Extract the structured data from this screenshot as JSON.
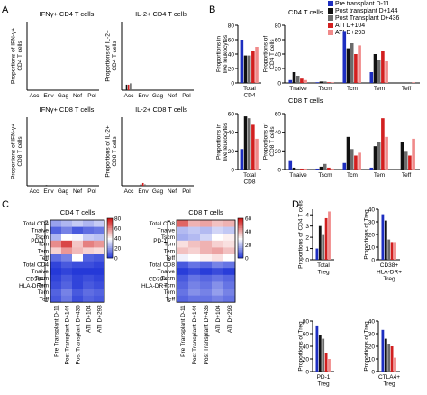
{
  "colors": {
    "pre": "#1d2ec0",
    "post144": "#111111",
    "post436": "#6b6b6b",
    "ati104": "#d21f1f",
    "ati293": "#f08a8a",
    "hm_low": "#1a2fd6",
    "hm_mid": "#ffffff",
    "hm_high": "#d01818"
  },
  "panel_labels": [
    "A",
    "B",
    "C",
    "D"
  ],
  "legend_b": [
    {
      "label": "Pre transplant D-11",
      "color": "#1d2ec0"
    },
    {
      "label": "Post transplant D+144",
      "color": "#111111"
    },
    {
      "label": "Post Transplant D+436",
      "color": "#6b6b6b"
    },
    {
      "label": "ATI D+104",
      "color": "#d21f1f"
    },
    {
      "label": "ATI D+293",
      "color": "#f08a8a"
    }
  ],
  "chart_data": [
    {
      "id": "A1",
      "type": "bar",
      "title": "IFNγ+ CD4 T cells",
      "ylabel": "Proportions of IFN-γ+ CD4 T cells",
      "categories": [
        "Acc",
        "Env",
        "Gag",
        "Nef",
        "Pol"
      ],
      "ylim": [
        0,
        1
      ],
      "series": [
        {
          "values": [
            0,
            0,
            0,
            0,
            0
          ]
        },
        {
          "values": [
            0,
            0,
            0,
            0,
            0
          ]
        },
        {
          "values": [
            0,
            0,
            0,
            0,
            0
          ]
        }
      ]
    },
    {
      "id": "A2",
      "type": "bar",
      "title": "IL-2+ CD4 T cells",
      "ylabel": "Proportions of IL-2+ CD4 T cells",
      "categories": [
        "Acc",
        "Env",
        "Gag",
        "Nef",
        "Pol"
      ],
      "ylim": [
        0,
        1
      ],
      "series": [
        {
          "values": [
            0.08,
            0,
            0,
            0,
            0
          ]
        },
        {
          "values": [
            0.08,
            0,
            0,
            0,
            0
          ]
        },
        {
          "values": [
            0.1,
            0,
            0,
            0,
            0
          ]
        }
      ]
    },
    {
      "id": "A3",
      "type": "bar",
      "title": "IFNγ+ CD8 T cells",
      "ylabel": "Proportions of IFN-γ+ CD8 T cells",
      "categories": [
        "Acc",
        "Env",
        "Gag",
        "Nef",
        "Pol"
      ],
      "ylim": [
        0,
        1
      ],
      "series": [
        {
          "values": [
            0,
            0.01,
            0,
            0,
            0
          ]
        },
        {
          "values": [
            0,
            0,
            0,
            0,
            0
          ]
        },
        {
          "values": [
            0,
            0,
            0,
            0,
            0
          ]
        }
      ]
    },
    {
      "id": "A4",
      "type": "bar",
      "title": "IL-2+ CD8 T cells",
      "ylabel": "Proportions of IL-2+ CD8 T cells",
      "categories": [
        "Acc",
        "Env",
        "Gag",
        "Nef",
        "Pol"
      ],
      "ylim": [
        0,
        1
      ],
      "series": [
        {
          "values": [
            0,
            0.02,
            0,
            0,
            0
          ]
        },
        {
          "values": [
            0,
            0.04,
            0,
            0,
            0
          ]
        },
        {
          "values": [
            0,
            0.02,
            0,
            0,
            0
          ]
        }
      ]
    },
    {
      "id": "B1",
      "type": "bar",
      "ylabel": "Proportions in live leukocytes",
      "categories": [
        "Total CD4"
      ],
      "yticks": [
        0,
        20,
        40,
        60,
        80
      ],
      "ylim": [
        0,
        80
      ],
      "series": [
        {
          "values": [
            60
          ]
        },
        {
          "values": [
            38
          ]
        },
        {
          "values": [
            38
          ]
        },
        {
          "values": [
            45
          ]
        },
        {
          "values": [
            50
          ]
        }
      ]
    },
    {
      "id": "B2",
      "type": "bar",
      "title": "CD4 T cells",
      "ylabel": "Proportions of CD4 T cells",
      "categories": [
        "Tnaive",
        "Tscm",
        "Tcm",
        "Tem",
        "Teff"
      ],
      "yticks": [
        0,
        20,
        40,
        60,
        80
      ],
      "ylim": [
        0,
        80
      ],
      "series": [
        {
          "values": [
            4,
            1,
            72,
            15,
            0
          ]
        },
        {
          "values": [
            15,
            2,
            48,
            40,
            0
          ]
        },
        {
          "values": [
            10,
            2,
            55,
            32,
            0
          ]
        },
        {
          "values": [
            6,
            1,
            40,
            44,
            0
          ]
        },
        {
          "values": [
            4,
            1,
            52,
            30,
            1
          ]
        }
      ]
    },
    {
      "id": "B3",
      "type": "bar",
      "ylabel": "Proportions in live leukocytes",
      "categories": [
        "Total CD8"
      ],
      "yticks": [
        0,
        20,
        40,
        60
      ],
      "ylim": [
        0,
        60
      ],
      "series": [
        {
          "values": [
            22
          ]
        },
        {
          "values": [
            57
          ]
        },
        {
          "values": [
            55
          ]
        },
        {
          "values": [
            48
          ]
        },
        {
          "values": [
            33
          ]
        }
      ]
    },
    {
      "id": "B4",
      "type": "bar",
      "title": "CD8 T cells",
      "ylabel": "Proportions of CD8 T cells",
      "categories": [
        "Tnaive",
        "Tscm",
        "Tcm",
        "Tem",
        "Teff"
      ],
      "yticks": [
        0,
        20,
        40,
        60
      ],
      "ylim": [
        0,
        60
      ],
      "series": [
        {
          "values": [
            10,
            1,
            7,
            2,
            0
          ]
        },
        {
          "values": [
            2,
            3,
            35,
            25,
            30
          ]
        },
        {
          "values": [
            1,
            6,
            22,
            30,
            20
          ]
        },
        {
          "values": [
            1,
            2,
            15,
            55,
            15
          ]
        },
        {
          "values": [
            1,
            1,
            18,
            35,
            33
          ]
        }
      ]
    },
    {
      "id": "C1",
      "type": "heatmap",
      "title": "CD4 T cells",
      "rows": [
        "Total CD4",
        "Tnaive",
        "Tscm",
        "Tcm",
        "Tem",
        "Teff",
        "Total CD4",
        "Tnaive",
        "Tscm",
        "Tcm",
        "Tem",
        "Teff"
      ],
      "row_groups": [
        {
          "label": "PD-1",
          "rows": 6
        },
        {
          "label": "CD38+ HLA-DR+",
          "rows": 6
        }
      ],
      "columns": [
        "Pre Transplant D-11",
        "Post Transplant D+144",
        "Post Transplant D+436",
        "ATI D+104",
        "ATI D+293"
      ],
      "colorbar": {
        "min": 0,
        "max": 80,
        "ticks": [
          0,
          20,
          40,
          60,
          80
        ]
      },
      "values": [
        [
          22,
          26,
          30,
          26,
          30
        ],
        [
          10,
          16,
          8,
          12,
          14
        ],
        [
          26,
          40,
          38,
          30,
          28
        ],
        [
          60,
          72,
          50,
          62,
          58
        ],
        [
          48,
          58,
          52,
          48,
          46
        ],
        [
          12,
          16,
          40,
          10,
          8
        ],
        [
          4,
          8,
          6,
          6,
          4
        ],
        [
          2,
          4,
          2,
          2,
          2
        ],
        [
          4,
          8,
          4,
          6,
          4
        ],
        [
          6,
          10,
          4,
          8,
          6
        ],
        [
          10,
          16,
          8,
          12,
          10
        ],
        [
          8,
          14,
          6,
          10,
          8
        ]
      ]
    },
    {
      "id": "C2",
      "type": "heatmap",
      "title": "CD8 T cells",
      "rows": [
        "Total CD8",
        "Tnaive",
        "Tscm",
        "Tcm",
        "Tem",
        "Teff",
        "Total CD8",
        "Tnaive",
        "Tscm",
        "Tcm",
        "Tem",
        "Teff"
      ],
      "row_groups": [
        {
          "label": "PD-1",
          "rows": 6
        },
        {
          "label": "CD38+ HLA-DR+",
          "rows": 6
        }
      ],
      "columns": [
        "Pre Transplant D-11",
        "Post Transplant D+144",
        "Post Transplant D+436",
        "ATI D+104",
        "ATI D+293"
      ],
      "colorbar": {
        "min": 0,
        "max": 60,
        "ticks": [
          0,
          20,
          40,
          60
        ]
      },
      "values": [
        [
          50,
          40,
          42,
          38,
          40
        ],
        [
          20,
          22,
          20,
          24,
          22
        ],
        [
          18,
          20,
          24,
          30,
          32
        ],
        [
          34,
          38,
          40,
          36,
          34
        ],
        [
          38,
          36,
          40,
          42,
          38
        ],
        [
          28,
          30,
          32,
          34,
          30
        ],
        [
          6,
          10,
          8,
          12,
          10
        ],
        [
          2,
          4,
          2,
          4,
          2
        ],
        [
          6,
          10,
          8,
          10,
          8
        ],
        [
          8,
          12,
          10,
          14,
          10
        ],
        [
          10,
          14,
          12,
          16,
          12
        ],
        [
          8,
          10,
          10,
          12,
          10
        ]
      ]
    },
    {
      "id": "D1",
      "type": "bar",
      "ylabel": "Proportions of CD4 T cells",
      "categories": [
        "Total Treg"
      ],
      "yticks": [
        0,
        1,
        2,
        3,
        4
      ],
      "ylim": [
        0,
        4.5
      ],
      "series": [
        {
          "values": [
            1.0
          ]
        },
        {
          "values": [
            3.0
          ]
        },
        {
          "values": [
            2.2
          ]
        },
        {
          "values": [
            3.7
          ]
        },
        {
          "values": [
            4.3
          ]
        }
      ]
    },
    {
      "id": "D2",
      "type": "bar",
      "ylabel": "Proportions of Treg",
      "categories": [
        "CD38+ HLA-DR+ Treg"
      ],
      "yticks": [
        0,
        10,
        20,
        30,
        40
      ],
      "ylim": [
        0,
        40
      ],
      "series": [
        {
          "values": [
            36
          ]
        },
        {
          "values": [
            31
          ]
        },
        {
          "values": [
            16
          ]
        },
        {
          "values": [
            14
          ]
        },
        {
          "values": [
            14
          ]
        }
      ]
    },
    {
      "id": "D3",
      "type": "bar",
      "ylabel": "Proportions of Treg",
      "categories": [
        "PD-1 Treg"
      ],
      "yticks": [
        0,
        20,
        40,
        60,
        80
      ],
      "ylim": [
        0,
        80
      ],
      "series": [
        {
          "values": [
            73
          ]
        },
        {
          "values": [
            58
          ]
        },
        {
          "values": [
            52
          ]
        },
        {
          "values": [
            30
          ]
        },
        {
          "values": [
            20
          ]
        }
      ]
    },
    {
      "id": "D4",
      "type": "bar",
      "ylabel": "Proportions of Treg",
      "categories": [
        "CTLA4+ Treg"
      ],
      "yticks": [
        0,
        10,
        20,
        30,
        40
      ],
      "ylim": [
        0,
        40
      ],
      "series": [
        {
          "values": [
            33
          ]
        },
        {
          "values": [
            26
          ]
        },
        {
          "values": [
            22
          ]
        },
        {
          "values": [
            20
          ]
        },
        {
          "values": [
            11
          ]
        }
      ]
    }
  ]
}
